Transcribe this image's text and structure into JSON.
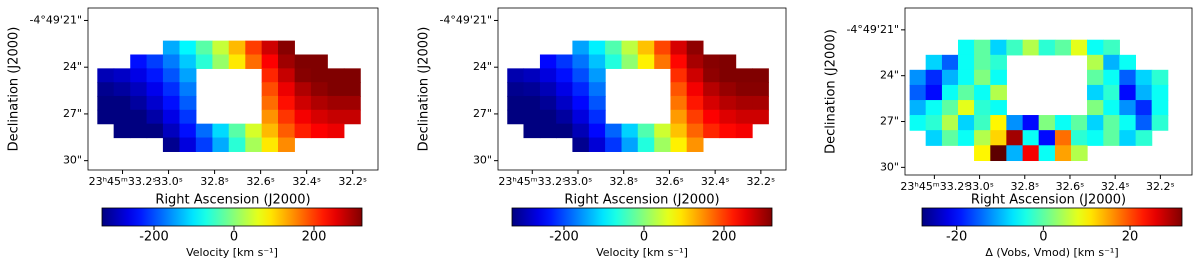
{
  "chart_data": [
    {
      "type": "heatmap",
      "xlabel": "Right Ascension (J2000)",
      "ylabel": "Declination (J2000)",
      "colormap": "jet",
      "xlim": [
        33.35,
        32.09
      ],
      "xticks": [
        {
          "value": 33.2,
          "label": "23ʰ45ᵐ33.2ˢ"
        },
        {
          "value": 33.0,
          "label": "33.0ˢ"
        },
        {
          "value": 32.8,
          "label": "32.8ˢ"
        },
        {
          "value": 32.6,
          "label": "32.6ˢ"
        },
        {
          "value": 32.4,
          "label": "32.4ˢ"
        },
        {
          "value": 32.2,
          "label": "32.2ˢ"
        }
      ],
      "ylim": [
        30.6,
        20.2
      ],
      "yticks": [
        {
          "value": 21,
          "label": "-4°49'21\""
        },
        {
          "value": 24,
          "label": "24\""
        },
        {
          "value": 27,
          "label": "27\""
        },
        {
          "value": 30,
          "label": "30\""
        }
      ],
      "x": [
        33.274,
        33.203,
        33.131,
        33.06,
        32.989,
        32.917,
        32.846,
        32.774,
        32.703,
        32.631,
        32.56,
        32.489,
        32.417,
        32.346,
        32.274,
        32.203
      ],
      "y": [
        22.74,
        23.63,
        24.52,
        25.41,
        26.29,
        27.18,
        28.07,
        28.96
      ],
      "values": [
        [
          null,
          null,
          null,
          null,
          -140,
          -90,
          -30,
          40,
          120,
          200,
          270,
          315,
          null,
          null,
          null,
          null
        ],
        [
          null,
          null,
          -240,
          -210,
          -170,
          -120,
          -60,
          10,
          90,
          170,
          240,
          300,
          320,
          320,
          null,
          null
        ],
        [
          -295,
          -285,
          -265,
          -235,
          -195,
          -145,
          null,
          null,
          null,
          null,
          215,
          275,
          315,
          320,
          320,
          320
        ],
        [
          -320,
          -310,
          -290,
          -260,
          -220,
          -170,
          null,
          null,
          null,
          null,
          190,
          250,
          290,
          310,
          320,
          320
        ],
        [
          -330,
          -330,
          -310,
          -280,
          -240,
          -190,
          null,
          null,
          null,
          null,
          170,
          230,
          270,
          290,
          300,
          300
        ],
        [
          -330,
          -330,
          -330,
          -305,
          -265,
          -215,
          null,
          null,
          null,
          null,
          145,
          205,
          245,
          265,
          275,
          275
        ],
        [
          null,
          -330,
          -330,
          -330,
          -290,
          -240,
          -180,
          -110,
          -30,
          50,
          120,
          180,
          220,
          240,
          250,
          null
        ],
        [
          null,
          null,
          null,
          null,
          -320,
          -270,
          -210,
          -140,
          -60,
          20,
          90,
          150,
          null,
          null,
          null,
          null
        ]
      ],
      "colorbar": {
        "label": "Velocity [km s⁻¹]",
        "lim": [
          -330,
          320
        ],
        "ticks": [
          -200,
          0,
          200
        ]
      }
    },
    {
      "type": "heatmap",
      "xlabel": "Right Ascension (J2000)",
      "ylabel": "Declination (J2000)",
      "colormap": "jet",
      "xlim": [
        33.35,
        32.09
      ],
      "xticks": [
        {
          "value": 33.2,
          "label": "23ʰ45ᵐ33.2ˢ"
        },
        {
          "value": 33.0,
          "label": "33.0ˢ"
        },
        {
          "value": 32.8,
          "label": "32.8ˢ"
        },
        {
          "value": 32.6,
          "label": "32.6ˢ"
        },
        {
          "value": 32.4,
          "label": "32.4ˢ"
        },
        {
          "value": 32.2,
          "label": "32.2ˢ"
        }
      ],
      "ylim": [
        30.6,
        20.2
      ],
      "yticks": [
        {
          "value": 21,
          "label": "-4°49'21\""
        },
        {
          "value": 24,
          "label": "24\""
        },
        {
          "value": 27,
          "label": "27\""
        },
        {
          "value": 30,
          "label": "30\""
        }
      ],
      "x": [
        33.274,
        33.203,
        33.131,
        33.06,
        32.989,
        32.917,
        32.846,
        32.774,
        32.703,
        32.631,
        32.56,
        32.489,
        32.417,
        32.346,
        32.274,
        32.203
      ],
      "y": [
        22.74,
        23.63,
        24.52,
        25.41,
        26.29,
        27.18,
        28.07,
        28.96
      ],
      "values": [
        [
          null,
          null,
          null,
          null,
          -145,
          -95,
          -35,
          35,
          115,
          195,
          265,
          310,
          null,
          null,
          null,
          null
        ],
        [
          null,
          null,
          -245,
          -215,
          -175,
          -125,
          -65,
          5,
          85,
          165,
          235,
          295,
          315,
          320,
          null,
          null
        ],
        [
          -300,
          -290,
          -270,
          -240,
          -200,
          -150,
          null,
          null,
          null,
          null,
          210,
          270,
          310,
          320,
          320,
          320
        ],
        [
          -320,
          -315,
          -295,
          -265,
          -225,
          -175,
          null,
          null,
          null,
          null,
          185,
          245,
          285,
          305,
          315,
          315
        ],
        [
          -330,
          -330,
          -315,
          -285,
          -245,
          -195,
          null,
          null,
          null,
          null,
          165,
          225,
          265,
          285,
          295,
          295
        ],
        [
          -330,
          -330,
          -330,
          -310,
          -270,
          -220,
          null,
          null,
          null,
          null,
          140,
          200,
          240,
          260,
          270,
          270
        ],
        [
          null,
          -330,
          -330,
          -330,
          -295,
          -245,
          -185,
          -115,
          -35,
          45,
          115,
          175,
          215,
          235,
          245,
          null
        ],
        [
          null,
          null,
          null,
          null,
          -320,
          -275,
          -215,
          -145,
          -65,
          15,
          85,
          145,
          null,
          null,
          null,
          null
        ]
      ],
      "colorbar": {
        "label": "Velocity [km s⁻¹]",
        "lim": [
          -330,
          320
        ],
        "ticks": [
          -200,
          0,
          200
        ]
      }
    },
    {
      "type": "heatmap",
      "xlabel": "Right Ascension (J2000)",
      "ylabel": "Declination (J2000)",
      "colormap": "jet",
      "xlim": [
        33.33,
        32.06
      ],
      "xticks": [
        {
          "value": 33.2,
          "label": "23ʰ45ᵐ33.2ˢ"
        },
        {
          "value": 33.0,
          "label": "33.0ˢ"
        },
        {
          "value": 32.8,
          "label": "32.8ˢ"
        },
        {
          "value": 32.6,
          "label": "32.6ˢ"
        },
        {
          "value": 32.4,
          "label": "32.4ˢ"
        },
        {
          "value": 32.2,
          "label": "32.2ˢ"
        }
      ],
      "ylim": [
        30.5,
        19.57
      ],
      "yticks": [
        {
          "value": 21,
          "label": "-4°49'21\""
        },
        {
          "value": 24,
          "label": "24\""
        },
        {
          "value": 27,
          "label": "27\""
        },
        {
          "value": 30,
          "label": "30\""
        }
      ],
      "x": [
        33.274,
        33.203,
        33.131,
        33.06,
        32.989,
        32.917,
        32.846,
        32.774,
        32.703,
        32.631,
        32.56,
        32.489,
        32.417,
        32.346,
        32.274,
        32.203
      ],
      "y": [
        22.14,
        23.13,
        24.11,
        25.1,
        26.09,
        27.07,
        28.06,
        29.05
      ],
      "values": [
        [
          null,
          null,
          null,
          -5,
          0,
          -8,
          -2,
          5,
          -3,
          0,
          8,
          -5,
          -2,
          null,
          null,
          null
        ],
        [
          null,
          -8,
          -15,
          -5,
          0,
          -3,
          null,
          null,
          null,
          null,
          null,
          5,
          -10,
          -5,
          null,
          null
        ],
        [
          -12,
          -18,
          -10,
          -5,
          2,
          -5,
          null,
          null,
          null,
          null,
          null,
          0,
          -5,
          -15,
          -8,
          -3
        ],
        [
          -15,
          -20,
          -5,
          0,
          -5,
          5,
          null,
          null,
          null,
          null,
          null,
          -8,
          -3,
          -20,
          -10,
          -5
        ],
        [
          -10,
          -5,
          0,
          8,
          -3,
          -5,
          null,
          null,
          null,
          null,
          null,
          2,
          -5,
          -12,
          -18,
          -5
        ],
        [
          -5,
          -3,
          5,
          -8,
          -2,
          10,
          -12,
          -20,
          2,
          -5,
          0,
          -8,
          0,
          -5,
          -15,
          -3
        ],
        [
          null,
          -8,
          0,
          -5,
          5,
          12,
          30,
          -5,
          -20,
          18,
          -3,
          -5,
          0,
          -8,
          -3,
          null
        ],
        [
          null,
          null,
          null,
          null,
          10,
          34,
          -10,
          25,
          -5,
          15,
          5,
          null,
          null,
          null,
          null,
          null
        ]
      ],
      "colorbar": {
        "label": "Δ (Vobs, Vmod) [km s⁻¹]",
        "lim": [
          -28,
          32
        ],
        "ticks": [
          -20,
          0,
          20
        ]
      }
    }
  ]
}
